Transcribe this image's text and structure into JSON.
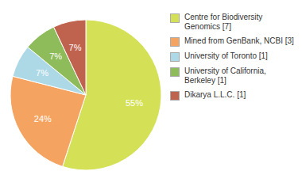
{
  "chart_data": {
    "type": "pie",
    "categories": [
      "Centre for Biodiversity\nGenomics [7]",
      "Mined from GenBank, NCBI [3]",
      "University of Toronto [1]",
      "University of California,\nBerkeley [1]",
      "Dikarya L.L.C. [1]"
    ],
    "values": [
      55,
      24,
      7,
      7,
      7
    ],
    "value_labels": [
      "55%",
      "24%",
      "7%",
      "7%",
      "7%"
    ],
    "colors": [
      "#d4e157",
      "#f4a460",
      "#add8e6",
      "#8fbc5a",
      "#c0634e"
    ],
    "data_labels": true,
    "legend": "right"
  }
}
